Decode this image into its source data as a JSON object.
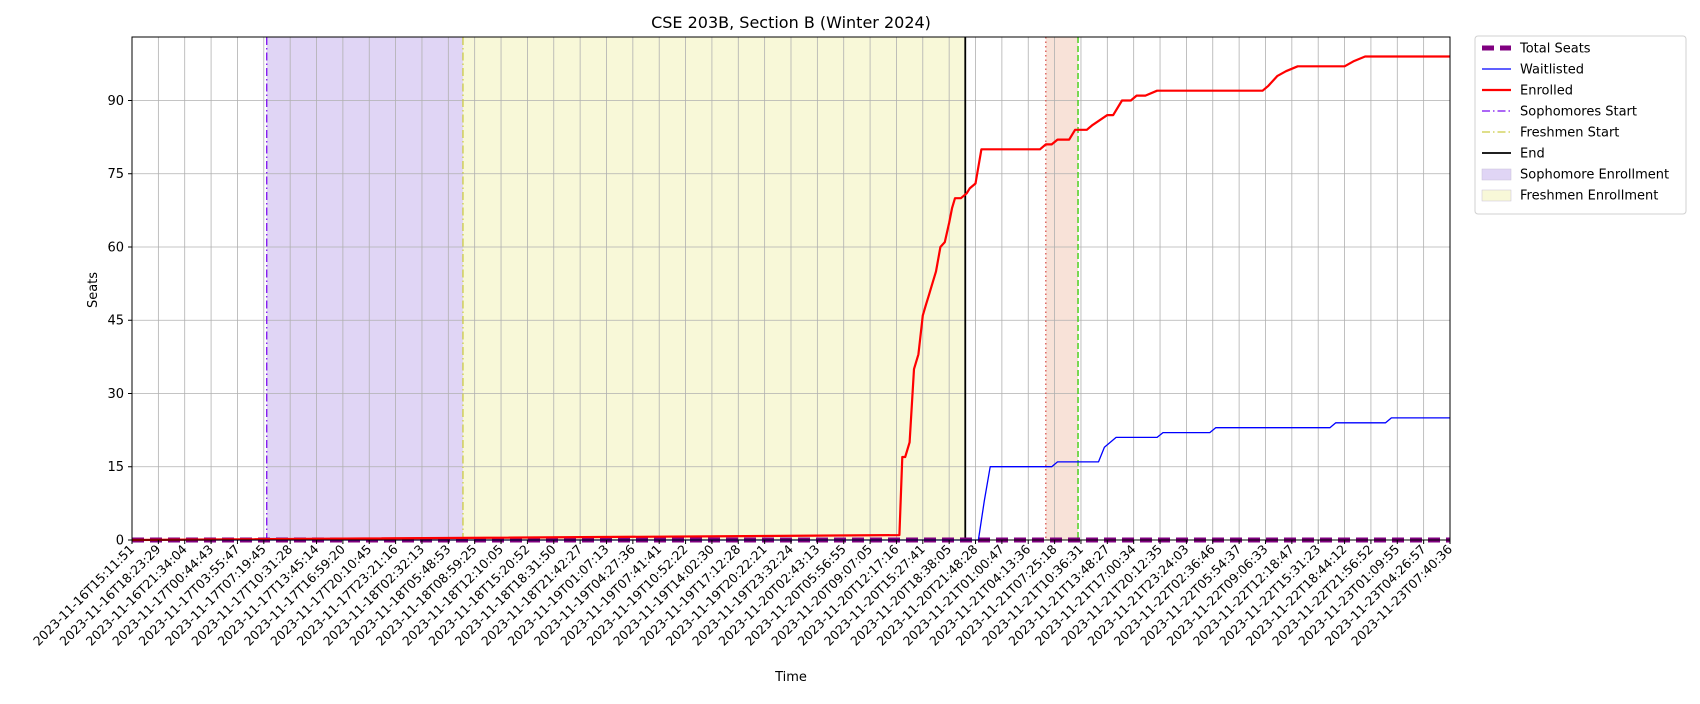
{
  "chart_data": {
    "type": "line",
    "title": "CSE 203B, Section B (Winter 2024)",
    "xlabel": "Time",
    "ylabel": "Seats",
    "ylim": [
      0,
      103
    ],
    "yticks": [
      0,
      15,
      30,
      45,
      60,
      75,
      90
    ],
    "xlim": [
      0,
      45
    ],
    "grid": true,
    "legend_position": "outside-right-top",
    "x_tick_labels": [
      "2023-11-16T15:11:51",
      "2023-11-16T18:23:29",
      "2023-11-16T21:34:04",
      "2023-11-17T00:44:43",
      "2023-11-17T03:55:47",
      "2023-11-17T07:19:45",
      "2023-11-17T10:31:28",
      "2023-11-17T13:45:14",
      "2023-11-17T16:59:20",
      "2023-11-17T20:10:45",
      "2023-11-17T23:21:16",
      "2023-11-18T02:32:13",
      "2023-11-18T05:48:53",
      "2023-11-18T08:59:25",
      "2023-11-18T12:10:05",
      "2023-11-18T15:20:52",
      "2023-11-18T18:31:50",
      "2023-11-18T21:42:27",
      "2023-11-19T01:07:13",
      "2023-11-19T04:27:36",
      "2023-11-19T07:41:41",
      "2023-11-19T10:52:22",
      "2023-11-19T14:02:30",
      "2023-11-19T17:12:28",
      "2023-11-19T20:22:21",
      "2023-11-19T23:32:24",
      "2023-11-20T02:43:13",
      "2023-11-20T05:56:55",
      "2023-11-20T09:07:05",
      "2023-11-20T12:17:16",
      "2023-11-20T15:27:41",
      "2023-11-20T18:38:05",
      "2023-11-20T21:48:28",
      "2023-11-21T01:00:47",
      "2023-11-21T04:13:36",
      "2023-11-21T07:25:18",
      "2023-11-21T10:36:31",
      "2023-11-21T13:48:27",
      "2023-11-21T17:00:34",
      "2023-11-21T20:12:35",
      "2023-11-21T23:24:03",
      "2023-11-22T02:36:46",
      "2023-11-22T05:54:37",
      "2023-11-22T09:06:33",
      "2023-11-22T12:18:47",
      "2023-11-22T15:31:23",
      "2023-11-22T18:44:12",
      "2023-11-22T21:56:52",
      "2023-11-23T01:09:55",
      "2023-11-23T04:26:57",
      "2023-11-23T07:40:36"
    ],
    "series": [
      {
        "name": "Total Seats",
        "color": "#800080",
        "style": "dashed-thick",
        "x": [
          0,
          45
        ],
        "y": [
          0,
          0
        ]
      },
      {
        "name": "Waitlisted",
        "color": "#0000ff",
        "style": "solid-thin",
        "x": [
          0,
          28.9,
          29.1,
          29.3,
          31.4,
          31.6,
          33.0,
          33.2,
          33.6,
          33.8,
          35.0,
          35.2,
          36.8,
          37.0,
          40.9,
          41.1,
          42.8,
          43.0,
          45.0
        ],
        "y": [
          0,
          0,
          8,
          15,
          15,
          16,
          16,
          19,
          21,
          21,
          21,
          22,
          22,
          23,
          23,
          24,
          24,
          25,
          25
        ]
      },
      {
        "name": "Enrolled",
        "color": "#ff0000",
        "style": "solid-thick",
        "x": [
          0,
          26.2,
          26.3,
          26.4,
          26.55,
          26.7,
          26.85,
          27.0,
          27.1,
          27.2,
          27.3,
          27.45,
          27.6,
          27.75,
          27.9,
          28.0,
          28.1,
          28.3,
          28.5,
          28.6,
          28.8,
          29.0,
          31.0,
          31.2,
          31.4,
          31.6,
          32.0,
          32.2,
          32.6,
          32.8,
          33.3,
          33.5,
          33.8,
          34.1,
          34.3,
          34.6,
          35.0,
          35.3,
          38.6,
          38.8,
          39.1,
          39.4,
          39.8,
          41.4,
          41.7,
          42.1,
          45.0
        ],
        "y": [
          0,
          1,
          17,
          17,
          20,
          35,
          38,
          46,
          48,
          50,
          52,
          55,
          60,
          61,
          65,
          68,
          70,
          70,
          71,
          72,
          73,
          80,
          80,
          81,
          81,
          82,
          82,
          84,
          84,
          85,
          87,
          87,
          90,
          90,
          91,
          91,
          92,
          92,
          92,
          93,
          95,
          96,
          97,
          97,
          98,
          99,
          99
        ]
      }
    ],
    "markers": [
      {
        "name": "Sophomores Start",
        "color": "#7b0cf0",
        "style": "dashdot",
        "x": 4.6
      },
      {
        "name": "Freshmen Start",
        "color": "#cccc44",
        "style": "dashdot",
        "x": 11.3
      },
      {
        "name": "End",
        "color": "#000000",
        "style": "solid",
        "x": 28.45
      },
      {
        "name": "",
        "color": "#d9534f",
        "style": "dotted",
        "x": 31.2
      },
      {
        "name": "",
        "color": "#33cc00",
        "style": "dashed",
        "x": 32.3
      }
    ],
    "spans": [
      {
        "name": "Sophomore Enrollment",
        "color": "#e0d5f5",
        "x0": 4.6,
        "x1": 11.3
      },
      {
        "name": "Freshmen Enrollment",
        "color": "#f8f8d8",
        "x0": 11.3,
        "x1": 28.45
      },
      {
        "name": "",
        "color": "#f8e2d8",
        "x0": 31.2,
        "x1": 32.3
      }
    ],
    "legend": [
      {
        "label": "Total Seats",
        "kind": "line",
        "color": "#800080",
        "style": "dashed-thick"
      },
      {
        "label": "Waitlisted",
        "kind": "line",
        "color": "#0000ff",
        "style": "solid-thin"
      },
      {
        "label": "Enrolled",
        "kind": "line",
        "color": "#ff0000",
        "style": "solid-thick"
      },
      {
        "label": "Sophomores Start",
        "kind": "line",
        "color": "#7b0cf0",
        "style": "dashdot"
      },
      {
        "label": "Freshmen Start",
        "kind": "line",
        "color": "#cccc44",
        "style": "dashdot"
      },
      {
        "label": "End",
        "kind": "line",
        "color": "#000000",
        "style": "solid"
      },
      {
        "label": "Sophomore Enrollment",
        "kind": "patch",
        "color": "#e0d5f5"
      },
      {
        "label": "Freshmen Enrollment",
        "kind": "patch",
        "color": "#f8f8d8"
      }
    ]
  }
}
